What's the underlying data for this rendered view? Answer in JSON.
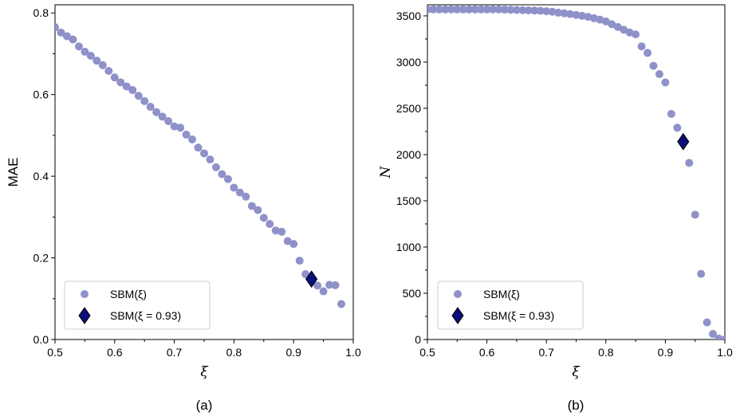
{
  "chart_data": [
    {
      "type": "scatter",
      "caption": "(a)",
      "xlabel": "ξ",
      "ylabel": "MAE",
      "xlim": [
        0.5,
        1.0
      ],
      "ylim": [
        0.0,
        0.82
      ],
      "xticks": [
        "0.5",
        "0.6",
        "0.7",
        "0.8",
        "0.9",
        "1.0"
      ],
      "yticks": [
        "0.0",
        "0.2",
        "0.4",
        "0.6",
        "0.8"
      ],
      "legend_position": "lower-left",
      "series": [
        {
          "name": "SBM(ξ)",
          "marker": "circle",
          "color": "#8f91c9",
          "x": [
            0.5,
            0.51,
            0.52,
            0.53,
            0.54,
            0.55,
            0.56,
            0.57,
            0.58,
            0.59,
            0.6,
            0.61,
            0.62,
            0.63,
            0.64,
            0.65,
            0.66,
            0.67,
            0.68,
            0.69,
            0.7,
            0.71,
            0.72,
            0.73,
            0.74,
            0.75,
            0.76,
            0.77,
            0.78,
            0.79,
            0.8,
            0.81,
            0.82,
            0.83,
            0.84,
            0.85,
            0.86,
            0.87,
            0.88,
            0.89,
            0.9,
            0.91,
            0.92,
            0.93,
            0.94,
            0.95,
            0.96,
            0.97,
            0.98
          ],
          "y": [
            0.765,
            0.752,
            0.743,
            0.735,
            0.718,
            0.705,
            0.695,
            0.683,
            0.672,
            0.658,
            0.642,
            0.63,
            0.62,
            0.611,
            0.597,
            0.584,
            0.57,
            0.557,
            0.546,
            0.535,
            0.522,
            0.519,
            0.502,
            0.49,
            0.47,
            0.456,
            0.441,
            0.422,
            0.405,
            0.393,
            0.372,
            0.36,
            0.35,
            0.327,
            0.317,
            0.298,
            0.283,
            0.267,
            0.264,
            0.241,
            0.234,
            0.193,
            0.16,
            0.148,
            0.132,
            0.118,
            0.134,
            0.133,
            0.087
          ]
        },
        {
          "name": "SBM(ξ = 0.93)",
          "marker": "diamond",
          "color": "#0b0f7a",
          "x": [
            0.93
          ],
          "y": [
            0.148
          ]
        }
      ]
    },
    {
      "type": "scatter",
      "caption": "(b)",
      "xlabel": "ξ",
      "ylabel": "N",
      "xlim": [
        0.5,
        1.0
      ],
      "ylim": [
        0,
        3620
      ],
      "xticks": [
        "0.5",
        "0.6",
        "0.7",
        "0.8",
        "0.9",
        "1.0"
      ],
      "yticks": [
        "0",
        "500",
        "1000",
        "1500",
        "2000",
        "2500",
        "3000",
        "3500"
      ],
      "legend_position": "lower-left",
      "series": [
        {
          "name": "SBM(ξ)",
          "marker": "circle",
          "color": "#8f91c9",
          "x": [
            0.5,
            0.51,
            0.52,
            0.53,
            0.54,
            0.55,
            0.56,
            0.57,
            0.58,
            0.59,
            0.6,
            0.61,
            0.62,
            0.63,
            0.64,
            0.65,
            0.66,
            0.67,
            0.68,
            0.69,
            0.7,
            0.71,
            0.72,
            0.73,
            0.74,
            0.75,
            0.76,
            0.77,
            0.78,
            0.79,
            0.8,
            0.81,
            0.82,
            0.83,
            0.84,
            0.85,
            0.86,
            0.87,
            0.88,
            0.89,
            0.9,
            0.91,
            0.92,
            0.94,
            0.95,
            0.96,
            0.97,
            0.98,
            0.99,
            1.0
          ],
          "y": [
            3570,
            3570,
            3570,
            3570,
            3570,
            3570,
            3570,
            3570,
            3570,
            3570,
            3570,
            3570,
            3570,
            3568,
            3566,
            3564,
            3562,
            3560,
            3558,
            3555,
            3550,
            3545,
            3535,
            3528,
            3520,
            3510,
            3500,
            3490,
            3475,
            3460,
            3440,
            3410,
            3380,
            3350,
            3320,
            3300,
            3170,
            3100,
            2960,
            2870,
            2780,
            2440,
            2290,
            1910,
            1350,
            710,
            185,
            60,
            10,
            0
          ]
        },
        {
          "name": "SBM(ξ = 0.93)",
          "marker": "diamond",
          "color": "#0b0f7a",
          "x": [
            0.93
          ],
          "y": [
            2140
          ]
        }
      ]
    }
  ]
}
